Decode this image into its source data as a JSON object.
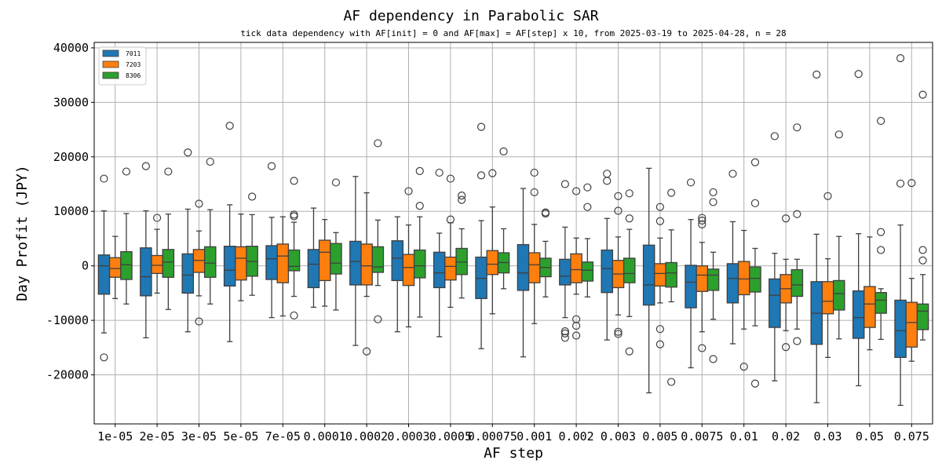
{
  "chart_data": {
    "type": "boxplot",
    "title": "AF dependency in Parabolic SAR",
    "subtitle": "tick data dependency with AF[init] = 0 and AF[max] = AF[step] x 10, from 2025-03-19 to 2025-04-28, n = 28",
    "xlabel": "AF step",
    "ylabel": "Day Profit (JPY)",
    "ylim": [
      -29000,
      41000
    ],
    "yticks": [
      -20000,
      -10000,
      0,
      10000,
      20000,
      30000,
      40000
    ],
    "grid": true,
    "legend_position": "top-left",
    "categories": [
      "1e-05",
      "2e-05",
      "3e-05",
      "5e-05",
      "7e-05",
      "0.0001",
      "0.0002",
      "0.0003",
      "0.0005",
      "0.00075",
      "0.001",
      "0.002",
      "0.003",
      "0.005",
      "0.0075",
      "0.01",
      "0.02",
      "0.03",
      "0.05",
      "0.075"
    ],
    "series": [
      {
        "name": "7011",
        "color": "#1f77b4",
        "boxes": [
          {
            "q1": -5200,
            "median": 0,
            "q3": 2000,
            "wlo": -12300,
            "whi": 10100,
            "outliers": [
              16000,
              -16800
            ]
          },
          {
            "q1": -5500,
            "median": -2000,
            "q3": 3300,
            "wlo": -13200,
            "whi": 10100,
            "outliers": [
              18300
            ]
          },
          {
            "q1": -5000,
            "median": -1700,
            "q3": 2200,
            "wlo": -12100,
            "whi": 10400,
            "outliers": [
              20800
            ]
          },
          {
            "q1": -3700,
            "median": -800,
            "q3": 3600,
            "wlo": -13900,
            "whi": 11200,
            "outliers": [
              25700
            ]
          },
          {
            "q1": -2500,
            "median": 1300,
            "q3": 3700,
            "wlo": -9500,
            "whi": 8900,
            "outliers": [
              18300
            ]
          },
          {
            "q1": -4000,
            "median": 300,
            "q3": 3000,
            "wlo": -7600,
            "whi": 10600,
            "outliers": []
          },
          {
            "q1": -3500,
            "median": 800,
            "q3": 4500,
            "wlo": -14600,
            "whi": 16400,
            "outliers": []
          },
          {
            "q1": -2700,
            "median": 1400,
            "q3": 4600,
            "wlo": -12100,
            "whi": 9000,
            "outliers": []
          },
          {
            "q1": -4000,
            "median": -1300,
            "q3": 2500,
            "wlo": -13000,
            "whi": 6000,
            "outliers": [
              17100
            ]
          },
          {
            "q1": -6000,
            "median": -2300,
            "q3": 1600,
            "wlo": -15200,
            "whi": 8300,
            "outliers": [
              25500,
              16600
            ]
          },
          {
            "q1": -4500,
            "median": -1300,
            "q3": 3900,
            "wlo": -16700,
            "whi": 14200,
            "outliers": []
          },
          {
            "q1": -3500,
            "median": -1900,
            "q3": 1200,
            "wlo": -9500,
            "whi": 7100,
            "outliers": [
              15000,
              -12000,
              -12400,
              -13200
            ]
          },
          {
            "q1": -4900,
            "median": -500,
            "q3": 2900,
            "wlo": -13600,
            "whi": 8700,
            "outliers": [
              16900,
              15600
            ]
          },
          {
            "q1": -7200,
            "median": -3500,
            "q3": 3800,
            "wlo": -23300,
            "whi": 17900,
            "outliers": []
          },
          {
            "q1": -7700,
            "median": -3000,
            "q3": 100,
            "wlo": -18700,
            "whi": 8500,
            "outliers": [
              15300
            ]
          },
          {
            "q1": -6800,
            "median": -2300,
            "q3": 400,
            "wlo": -14300,
            "whi": 8100,
            "outliers": [
              16900
            ]
          },
          {
            "q1": -11300,
            "median": -5400,
            "q3": -2400,
            "wlo": -21100,
            "whi": 2300,
            "outliers": [
              23800
            ]
          },
          {
            "q1": -14400,
            "median": -8700,
            "q3": -2900,
            "wlo": -25100,
            "whi": 5800,
            "outliers": [
              35100
            ]
          },
          {
            "q1": -13300,
            "median": -9500,
            "q3": -4600,
            "wlo": -22000,
            "whi": 5900,
            "outliers": [
              35200
            ]
          },
          {
            "q1": -16800,
            "median": -11900,
            "q3": -6300,
            "wlo": -25600,
            "whi": 7500,
            "outliers": [
              38100,
              15100
            ]
          }
        ]
      },
      {
        "name": "7203",
        "color": "#ff7f0e",
        "boxes": [
          {
            "q1": -2100,
            "median": -500,
            "q3": 1500,
            "wlo": -6000,
            "whi": 5400,
            "outliers": []
          },
          {
            "q1": -1400,
            "median": 100,
            "q3": 1900,
            "wlo": -5000,
            "whi": 6700,
            "outliers": [
              8800
            ]
          },
          {
            "q1": -1200,
            "median": 1000,
            "q3": 3000,
            "wlo": -5500,
            "whi": 6400,
            "outliers": [
              11400,
              -10200
            ]
          },
          {
            "q1": -2600,
            "median": 1400,
            "q3": 3500,
            "wlo": -6400,
            "whi": 9500,
            "outliers": []
          },
          {
            "q1": -3100,
            "median": 1800,
            "q3": 4000,
            "wlo": -9200,
            "whi": 9000,
            "outliers": []
          },
          {
            "q1": -2700,
            "median": 2500,
            "q3": 4700,
            "wlo": -7400,
            "whi": 8500,
            "outliers": []
          },
          {
            "q1": -3500,
            "median": 0,
            "q3": 4000,
            "wlo": -5600,
            "whi": 13400,
            "outliers": [
              -15700
            ]
          },
          {
            "q1": -3600,
            "median": -300,
            "q3": 2100,
            "wlo": -11200,
            "whi": 7500,
            "outliers": [
              13700
            ]
          },
          {
            "q1": -2600,
            "median": -100,
            "q3": 1600,
            "wlo": -7600,
            "whi": 7900,
            "outliers": [
              16000,
              8500
            ]
          },
          {
            "q1": -1600,
            "median": 300,
            "q3": 2800,
            "wlo": -8800,
            "whi": 10800,
            "outliers": [
              17000
            ]
          },
          {
            "q1": -3100,
            "median": 200,
            "q3": 2400,
            "wlo": -10600,
            "whi": 7600,
            "outliers": [
              17100,
              13500
            ]
          },
          {
            "q1": -3100,
            "median": -700,
            "q3": 2200,
            "wlo": -5200,
            "whi": 5100,
            "outliers": [
              13700,
              -9800,
              -11000,
              -12800
            ]
          },
          {
            "q1": -4000,
            "median": -1500,
            "q3": 1000,
            "wlo": -9000,
            "whi": 5300,
            "outliers": [
              12800,
              10100,
              -12100,
              -12500
            ]
          },
          {
            "q1": -3700,
            "median": -1400,
            "q3": 400,
            "wlo": -6800,
            "whi": 5100,
            "outliers": [
              10800,
              8200,
              -11600,
              -14400
            ]
          },
          {
            "q1": -4700,
            "median": -1700,
            "q3": 0,
            "wlo": -12100,
            "whi": 4300,
            "outliers": [
              8800,
              8300,
              7600,
              -15100
            ]
          },
          {
            "q1": -5300,
            "median": -2400,
            "q3": 800,
            "wlo": -11600,
            "whi": 6500,
            "outliers": [
              -18500
            ]
          },
          {
            "q1": -6800,
            "median": -4200,
            "q3": -1600,
            "wlo": -11900,
            "whi": 1200,
            "outliers": [
              8700,
              -14900
            ]
          },
          {
            "q1": -8800,
            "median": -6500,
            "q3": -2900,
            "wlo": -16800,
            "whi": 1300,
            "outliers": [
              12800
            ]
          },
          {
            "q1": -11300,
            "median": -7000,
            "q3": -3800,
            "wlo": -15400,
            "whi": 5300,
            "outliers": []
          },
          {
            "q1": -14900,
            "median": -10400,
            "q3": -6700,
            "wlo": -17500,
            "whi": -2300,
            "outliers": [
              15200
            ]
          }
        ]
      },
      {
        "name": "8306",
        "color": "#2ca02c",
        "boxes": [
          {
            "q1": -2500,
            "median": 200,
            "q3": 2600,
            "wlo": -7000,
            "whi": 9600,
            "outliers": [
              17300
            ]
          },
          {
            "q1": -2100,
            "median": 700,
            "q3": 3000,
            "wlo": -8000,
            "whi": 9500,
            "outliers": [
              17300
            ]
          },
          {
            "q1": -2100,
            "median": 500,
            "q3": 3500,
            "wlo": -7000,
            "whi": 10300,
            "outliers": [
              19100
            ]
          },
          {
            "q1": -1900,
            "median": 800,
            "q3": 3600,
            "wlo": -5400,
            "whi": 9400,
            "outliers": [
              12700
            ]
          },
          {
            "q1": -900,
            "median": -100,
            "q3": 2900,
            "wlo": -5600,
            "whi": 8000,
            "outliers": [
              15600,
              9400,
              9100,
              -9100
            ]
          },
          {
            "q1": -1500,
            "median": 500,
            "q3": 4100,
            "wlo": -8100,
            "whi": 6100,
            "outliers": [
              15300
            ]
          },
          {
            "q1": -1200,
            "median": -200,
            "q3": 3500,
            "wlo": -3600,
            "whi": 8400,
            "outliers": [
              22500,
              -9800
            ]
          },
          {
            "q1": -2200,
            "median": 0,
            "q3": 2900,
            "wlo": -9400,
            "whi": 9000,
            "outliers": [
              17400,
              11000
            ]
          },
          {
            "q1": -1600,
            "median": 700,
            "q3": 3200,
            "wlo": -5900,
            "whi": 6800,
            "outliers": [
              12900,
              12100
            ]
          },
          {
            "q1": -1300,
            "median": 600,
            "q3": 2400,
            "wlo": -4200,
            "whi": 6800,
            "outliers": [
              21000
            ]
          },
          {
            "q1": -2000,
            "median": -300,
            "q3": 1400,
            "wlo": -5700,
            "whi": 4500,
            "outliers": [
              9800,
              9600
            ]
          },
          {
            "q1": -2800,
            "median": -800,
            "q3": 700,
            "wlo": -5700,
            "whi": 5000,
            "outliers": [
              14400,
              10800
            ]
          },
          {
            "q1": -3100,
            "median": -1400,
            "q3": 1400,
            "wlo": -9300,
            "whi": 6700,
            "outliers": [
              13300,
              8700,
              -15700
            ]
          },
          {
            "q1": -3900,
            "median": -1300,
            "q3": 600,
            "wlo": -6600,
            "whi": 6600,
            "outliers": [
              13400,
              -21300
            ]
          },
          {
            "q1": -4500,
            "median": -1700,
            "q3": -600,
            "wlo": -9800,
            "whi": 2500,
            "outliers": [
              13500,
              11700,
              -17100
            ]
          },
          {
            "q1": -4800,
            "median": -2300,
            "q3": -200,
            "wlo": -11000,
            "whi": 3200,
            "outliers": [
              19000,
              11500,
              -21600
            ]
          },
          {
            "q1": -5600,
            "median": -3500,
            "q3": -700,
            "wlo": -11600,
            "whi": 1200,
            "outliers": [
              25400,
              9500,
              -13800
            ]
          },
          {
            "q1": -8100,
            "median": -5100,
            "q3": -2700,
            "wlo": -13400,
            "whi": 5400,
            "outliers": [
              24100
            ]
          },
          {
            "q1": -8700,
            "median": -6300,
            "q3": -4900,
            "wlo": -13500,
            "whi": -4200,
            "outliers": [
              26600,
              6200,
              2900
            ]
          },
          {
            "q1": -11700,
            "median": -8300,
            "q3": -7000,
            "wlo": -13600,
            "whi": -1600,
            "outliers": [
              31400,
              2900,
              1000
            ]
          }
        ]
      }
    ]
  }
}
